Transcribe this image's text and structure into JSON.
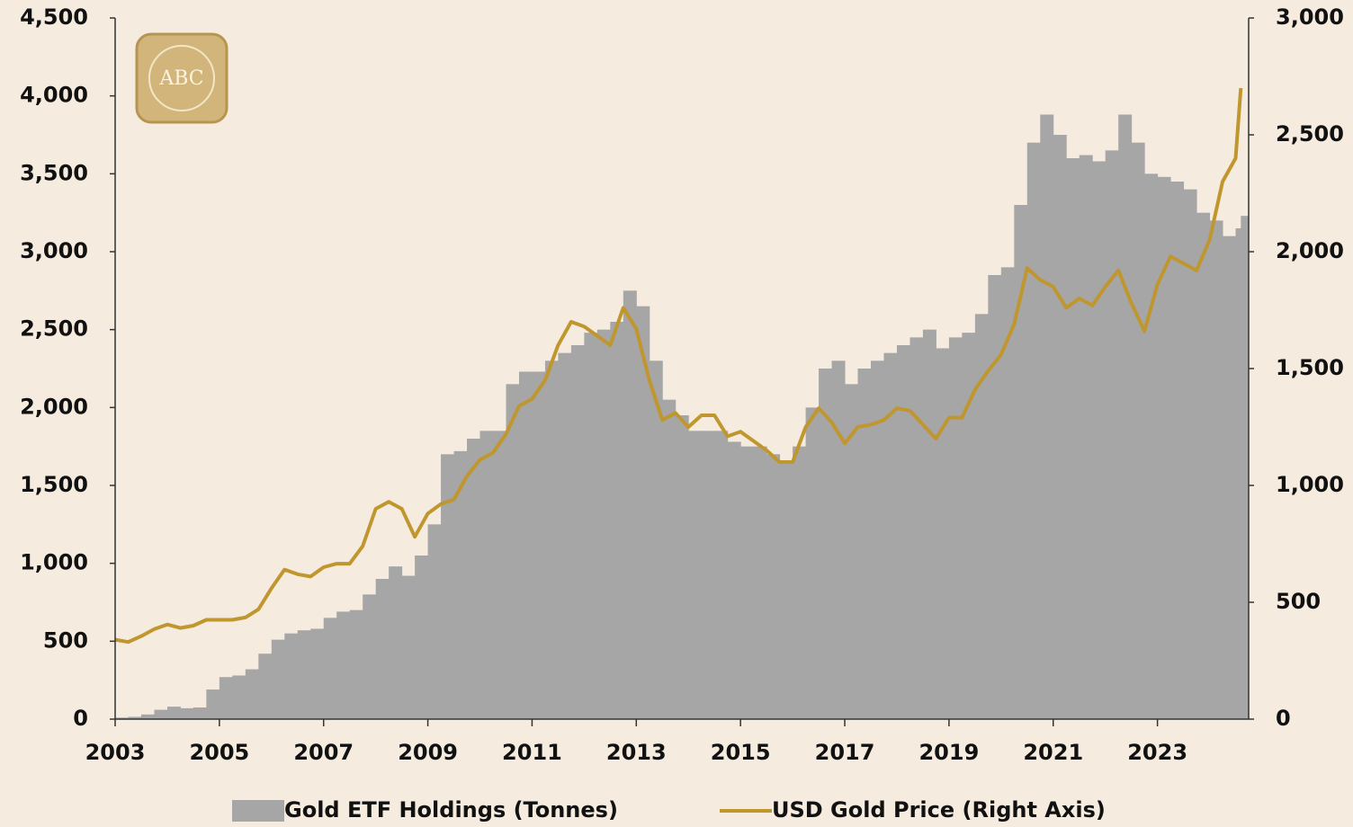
{
  "chart_data": {
    "type": "bar_line",
    "logo": "ABC",
    "x": [
      2003.0,
      2003.25,
      2003.5,
      2003.75,
      2004.0,
      2004.25,
      2004.5,
      2004.75,
      2005.0,
      2005.25,
      2005.5,
      2005.75,
      2006.0,
      2006.25,
      2006.5,
      2006.75,
      2007.0,
      2007.25,
      2007.5,
      2007.75,
      2008.0,
      2008.25,
      2008.5,
      2008.75,
      2009.0,
      2009.25,
      2009.5,
      2009.75,
      2010.0,
      2010.25,
      2010.5,
      2010.75,
      2011.0,
      2011.25,
      2011.5,
      2011.75,
      2012.0,
      2012.25,
      2012.5,
      2012.75,
      2013.0,
      2013.25,
      2013.5,
      2013.75,
      2014.0,
      2014.25,
      2014.5,
      2014.75,
      2015.0,
      2015.25,
      2015.5,
      2015.75,
      2016.0,
      2016.25,
      2016.5,
      2016.75,
      2017.0,
      2017.25,
      2017.5,
      2017.75,
      2018.0,
      2018.25,
      2018.5,
      2018.75,
      2019.0,
      2019.25,
      2019.5,
      2019.75,
      2020.0,
      2020.25,
      2020.5,
      2020.75,
      2021.0,
      2021.25,
      2021.5,
      2021.75,
      2022.0,
      2022.25,
      2022.5,
      2022.75,
      2023.0,
      2023.25,
      2023.5,
      2023.75,
      2024.0,
      2024.25,
      2024.5,
      2024.6
    ],
    "series": [
      {
        "name": "Gold ETF Holdings (Tonnes)",
        "color": "#a6a6a6",
        "kind": "bar",
        "values": [
          10,
          15,
          30,
          60,
          80,
          70,
          75,
          190,
          270,
          280,
          320,
          420,
          510,
          550,
          570,
          580,
          650,
          690,
          700,
          800,
          900,
          980,
          920,
          1050,
          1250,
          1700,
          1720,
          1800,
          1850,
          1850,
          2150,
          2230,
          2230,
          2300,
          2350,
          2400,
          2480,
          2500,
          2550,
          2750,
          2650,
          2300,
          2050,
          1950,
          1850,
          1850,
          1850,
          1780,
          1750,
          1750,
          1700,
          1650,
          1750,
          2000,
          2250,
          2300,
          2150,
          2250,
          2300,
          2350,
          2400,
          2450,
          2500,
          2380,
          2450,
          2480,
          2600,
          2850,
          2900,
          3300,
          3700,
          3880,
          3750,
          3600,
          3620,
          3580,
          3650,
          3880,
          3700,
          3500,
          3480,
          3450,
          3400,
          3250,
          3200,
          3100,
          3150,
          3230
        ]
      },
      {
        "name": "USD Gold Price (Right Axis)",
        "color": "#c0962e",
        "kind": "line",
        "axis": "y2",
        "values": [
          340,
          330,
          355,
          385,
          405,
          390,
          400,
          425,
          425,
          425,
          435,
          470,
          560,
          640,
          620,
          610,
          650,
          665,
          665,
          740,
          900,
          930,
          900,
          780,
          880,
          920,
          940,
          1040,
          1110,
          1140,
          1220,
          1340,
          1370,
          1450,
          1600,
          1700,
          1680,
          1640,
          1600,
          1760,
          1670,
          1450,
          1280,
          1310,
          1250,
          1300,
          1300,
          1210,
          1230,
          1190,
          1150,
          1100,
          1100,
          1250,
          1330,
          1270,
          1180,
          1250,
          1260,
          1280,
          1330,
          1320,
          1260,
          1200,
          1290,
          1290,
          1410,
          1490,
          1560,
          1690,
          1930,
          1880,
          1850,
          1760,
          1800,
          1770,
          1850,
          1920,
          1780,
          1660,
          1860,
          1980,
          1950,
          1920,
          2050,
          2300,
          2400,
          2700
        ]
      }
    ],
    "xlim": [
      2003,
      2024.75
    ],
    "xticks": [
      2003,
      2005,
      2007,
      2009,
      2011,
      2013,
      2015,
      2017,
      2019,
      2021,
      2023
    ],
    "ylim": [
      0,
      4500
    ],
    "yticks": [
      0,
      500,
      {
        "value": 1000,
        "label": "1,000"
      },
      {
        "value": 1500,
        "label": "1,500"
      },
      {
        "value": 2000,
        "label": "2,000"
      },
      {
        "value": 2500,
        "label": "2,500"
      },
      {
        "value": 3000,
        "label": "3,000"
      },
      {
        "value": 3500,
        "label": "3,500"
      },
      {
        "value": 4000,
        "label": "4,000"
      },
      {
        "value": 4500,
        "label": "4,500"
      }
    ],
    "y2lim": [
      0,
      3000
    ],
    "y2ticks": [
      0,
      500,
      {
        "value": 1000,
        "label": "1,000"
      },
      {
        "value": 1500,
        "label": "1,500"
      },
      {
        "value": 2000,
        "label": "2,000"
      },
      {
        "value": 2500,
        "label": "2,500"
      },
      {
        "value": 3000,
        "label": "3,000"
      }
    ]
  }
}
